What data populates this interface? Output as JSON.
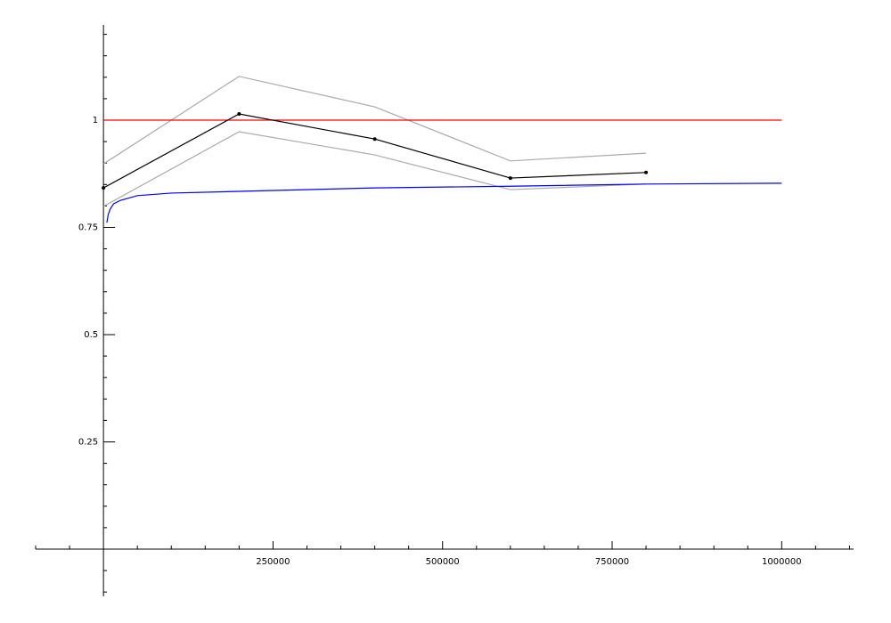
{
  "chart_data": {
    "type": "line",
    "xlim": [
      -100000,
      1106000
    ],
    "ylim": [
      -0.11,
      1.222
    ],
    "xticks": [
      250000,
      500000,
      750000,
      1000000
    ],
    "yticks": [
      0.25,
      0.5,
      0.75,
      1
    ],
    "xminorticks": [
      -100000,
      -50000,
      50000,
      100000,
      150000,
      200000,
      300000,
      350000,
      400000,
      450000,
      550000,
      600000,
      650000,
      700000,
      800000,
      850000,
      900000,
      950000,
      1050000,
      1100000
    ],
    "yminorticks": [
      -0.1,
      -0.05,
      0.05,
      0.1,
      0.15,
      0.2,
      0.3,
      0.35,
      0.4,
      0.45,
      0.55,
      0.6,
      0.65,
      0.7,
      0.8,
      0.85,
      0.9,
      0.95,
      1.05,
      1.1,
      1.15,
      1.2
    ],
    "series": [
      {
        "color": "#aaaaaa",
        "x": [
          0,
          200000,
          400000,
          600000,
          800000
        ],
        "values": [
          0.898,
          1.102,
          1.031,
          0.905,
          0.923
        ]
      },
      {
        "color": "#aaaaaa",
        "x": [
          0,
          200000,
          400000,
          600000,
          800000
        ],
        "values": [
          0.799,
          0.973,
          0.919,
          0.838,
          0.851
        ]
      },
      {
        "color": "#ff0000",
        "x": [
          0,
          1000000
        ],
        "values": [
          1,
          1
        ]
      },
      {
        "color": "#0000ff",
        "x": [
          5000,
          7000,
          10000,
          15000,
          25000,
          50000,
          100000,
          200000,
          400000,
          600000,
          800000,
          1000000
        ],
        "values": [
          0.761,
          0.78,
          0.793,
          0.805,
          0.813,
          0.824,
          0.83,
          0.834,
          0.842,
          0.846,
          0.851,
          0.853
        ]
      },
      {
        "color": "#000000",
        "markers": true,
        "x": [
          0,
          200000,
          400000,
          600000,
          800000
        ],
        "values": [
          0.842,
          1.0145,
          0.956,
          0.865,
          0.878
        ]
      }
    ]
  }
}
